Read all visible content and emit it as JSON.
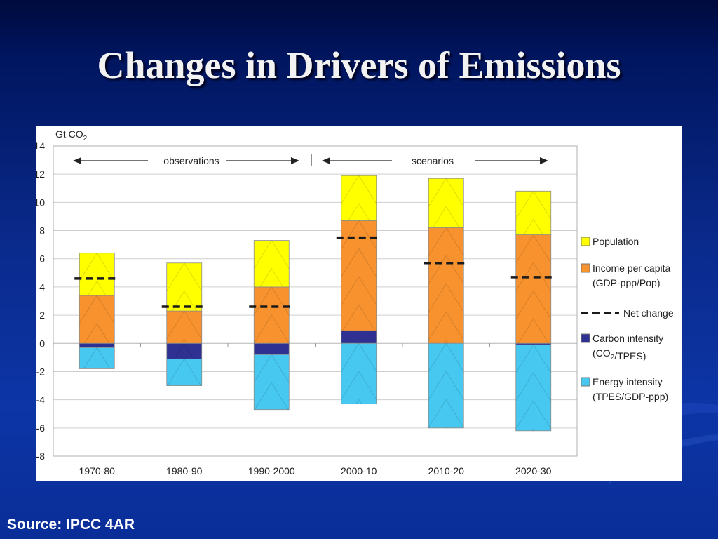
{
  "slide": {
    "title": "Changes in Drivers of Emissions",
    "source": "Source: IPCC 4AR"
  },
  "chart_data": {
    "type": "bar",
    "stacked": true,
    "title": "",
    "ylabel": "Gt CO2",
    "xlabel": "",
    "ylim": [
      -8,
      14
    ],
    "yticks": [
      14,
      12,
      10,
      8,
      6,
      4,
      2,
      0,
      -2,
      -4,
      -6,
      -8
    ],
    "grid": true,
    "legend_position": "right",
    "annotations": {
      "observations": "observations",
      "scenarios": "scenarios"
    },
    "categories": [
      "1970-80",
      "1980-90",
      "1990-2000",
      "2000-10",
      "2010-20",
      "2020-30"
    ],
    "series": [
      {
        "name": "Population",
        "color": "#ffff00",
        "values": [
          3.0,
          3.4,
          3.3,
          3.2,
          3.5,
          3.1
        ]
      },
      {
        "name": "Income per capita (GDP-ppp/Pop)",
        "color": "#f7922e",
        "values": [
          3.4,
          2.3,
          4.0,
          7.8,
          8.2,
          7.7
        ]
      },
      {
        "name": "Carbon intensity (CO2/TPES)",
        "color": "#2e3192",
        "values": [
          -0.3,
          -1.1,
          -0.8,
          0.9,
          0.0,
          -0.1
        ]
      },
      {
        "name": "Energy intensity (TPES/GDP-ppp)",
        "color": "#47c8f0",
        "values": [
          -1.5,
          -1.9,
          -3.9,
          -4.3,
          -6.0,
          -6.1
        ]
      }
    ],
    "net_change": {
      "name": "Net change",
      "values": [
        4.6,
        2.6,
        2.6,
        7.5,
        5.7,
        4.7
      ]
    }
  }
}
